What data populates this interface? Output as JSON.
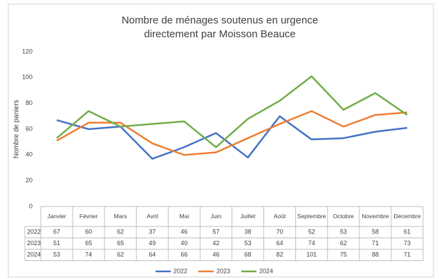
{
  "chart_data": {
    "type": "line",
    "title": [
      "Nombre de ménages soutenus en urgence",
      "directement par Moisson Beauce"
    ],
    "y_label": "Nombre de paniers",
    "categories": [
      "Janvier",
      "Février",
      "Mars",
      "Avril",
      "Mai",
      "Juin",
      "Juillet",
      "Août",
      "Septembre",
      "Octobre",
      "Novembre",
      "Décembre"
    ],
    "series": [
      {
        "name": "2022",
        "color": "#4472c4",
        "values": [
          67,
          60,
          62,
          37,
          46,
          57,
          38,
          70,
          52,
          53,
          58,
          61
        ]
      },
      {
        "name": "2023",
        "color": "#ed7d31",
        "values": [
          51,
          65,
          65,
          49,
          40,
          42,
          53,
          64,
          74,
          62,
          71,
          73
        ]
      },
      {
        "name": "2024",
        "color": "#70ad47",
        "values": [
          53,
          74,
          62,
          64,
          66,
          46,
          68,
          82,
          101,
          75,
          88,
          71
        ]
      }
    ],
    "ylim": [
      0,
      120
    ],
    "yticks": [
      0,
      20,
      40,
      60,
      80,
      100,
      120
    ],
    "grid": false,
    "legend": "bottom"
  }
}
